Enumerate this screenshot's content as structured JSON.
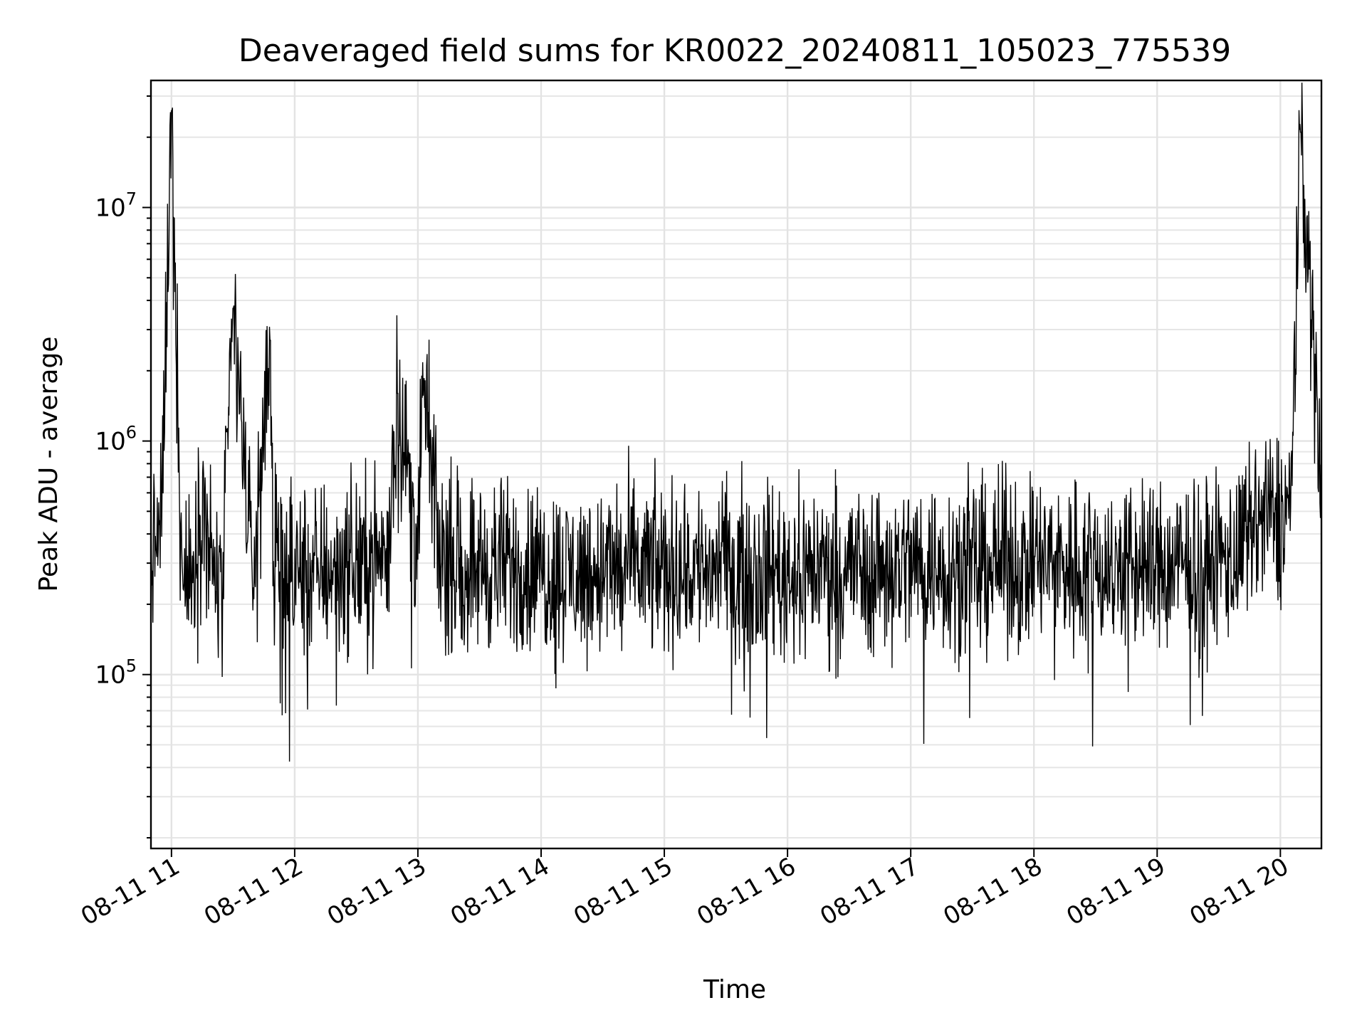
{
  "chart_data": {
    "type": "line",
    "title": "Deaveraged field sums for KR0022_20240811_105023_775539",
    "xlabel": "Time",
    "ylabel": "Peak ADU - average",
    "yscale": "log",
    "ylim": [
      18000,
      35000000
    ],
    "xlim": [
      "08-11 10:50",
      "08-11 20:20"
    ],
    "grid": true,
    "x_ticks": [
      "08-11 11",
      "08-11 12",
      "08-11 13",
      "08-11 14",
      "08-11 15",
      "08-11 16",
      "08-11 17",
      "08-11 18",
      "08-11 19",
      "08-11 20"
    ],
    "y_ticks": [
      {
        "value": 100000,
        "base": "10",
        "exp": "5"
      },
      {
        "value": 1000000,
        "base": "10",
        "exp": "6"
      },
      {
        "value": 10000000,
        "base": "10",
        "exp": "7"
      }
    ],
    "series": [
      {
        "color": "#000000",
        "x": [
          "08-11 10:50",
          "08-11 10:55",
          "08-11 11:00",
          "08-11 11:05",
          "08-11 11:10",
          "08-11 11:15",
          "08-11 11:20",
          "08-11 11:25",
          "08-11 11:30",
          "08-11 11:40",
          "08-11 11:48",
          "08-11 11:50",
          "08-11 12:00",
          "08-11 12:10",
          "08-11 12:20",
          "08-11 12:30",
          "08-11 12:45",
          "08-11 12:50",
          "08-11 13:00",
          "08-11 13:03",
          "08-11 13:10",
          "08-11 13:20",
          "08-11 13:40",
          "08-11 14:00",
          "08-11 14:20",
          "08-11 14:40",
          "08-11 15:00",
          "08-11 15:20",
          "08-11 15:40",
          "08-11 16:00",
          "08-11 16:20",
          "08-11 16:40",
          "08-11 17:00",
          "08-11 17:20",
          "08-11 17:40",
          "08-11 18:00",
          "08-11 18:20",
          "08-11 18:40",
          "08-11 19:00",
          "08-11 19:20",
          "08-11 19:40",
          "08-11 19:50",
          "08-11 20:00",
          "08-11 20:05",
          "08-11 20:10",
          "08-11 20:20"
        ],
        "values": [
          320000,
          420000,
          26000000,
          260000,
          250000,
          550000,
          280000,
          230000,
          3700000,
          240000,
          2700000,
          260000,
          270000,
          280000,
          290000,
          300000,
          330000,
          1600000,
          350000,
          1850000,
          340000,
          300000,
          290000,
          280000,
          270000,
          290000,
          280000,
          290000,
          290000,
          280000,
          290000,
          290000,
          300000,
          290000,
          300000,
          300000,
          300000,
          290000,
          290000,
          290000,
          330000,
          450000,
          480000,
          520000,
          21000000,
          650000
        ],
        "noise_amplitude_decades": 0.55
      }
    ]
  }
}
